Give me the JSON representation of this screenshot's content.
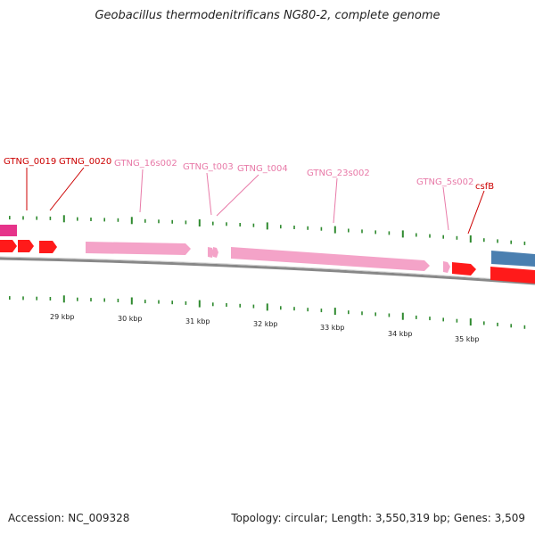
{
  "title": "Geobacillus thermodenitrificans NG80-2, complete genome",
  "footer": {
    "accession": "Accession: NC_009328",
    "summary": "Topology: circular; Length: 3,550,319 bp; Genes: 3,509"
  },
  "colors": {
    "cds": "#ff1a1a",
    "rna": "#f4a3c8",
    "magenta_feature": "#e6338a",
    "blue_feature": "#4a7fb0",
    "backbone": "#888888",
    "tick": "#2f8a2f",
    "label_cds": "#cc0000",
    "label_rna": "#e87aa8"
  },
  "scale_labels": [
    "29 kbp",
    "30 kbp",
    "31 kbp",
    "32 kbp",
    "33 kbp",
    "34 kbp",
    "35 kbp"
  ],
  "genes": [
    {
      "label": "GTNG_0019",
      "type": "cds"
    },
    {
      "label": "GTNG_0020",
      "type": "cds"
    },
    {
      "label": "GTNG_16s002",
      "type": "rna"
    },
    {
      "label": "GTNG_t003",
      "type": "rna"
    },
    {
      "label": "GTNG_t004",
      "type": "rna"
    },
    {
      "label": "GTNG_23s002",
      "type": "rna"
    },
    {
      "label": "GTNG_5s002",
      "type": "rna"
    },
    {
      "label": "csfB",
      "type": "cds"
    }
  ]
}
